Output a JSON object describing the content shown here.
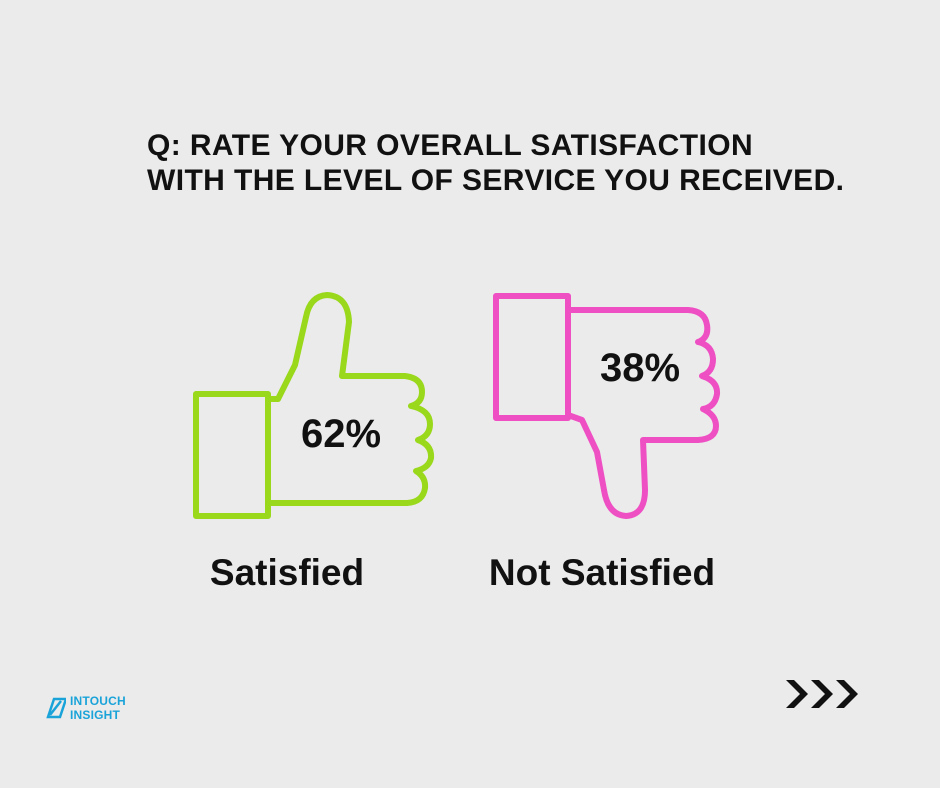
{
  "question": {
    "line1": "Q: RATE YOUR OVERALL SATISFACTION",
    "line2": "WITH THE LEVEL OF SERVICE YOU RECEIVED."
  },
  "chart_data": {
    "type": "pictograph",
    "title": "Q: RATE YOUR OVERALL SATISFACTION WITH THE LEVEL OF SERVICE YOU RECEIVED.",
    "categories": [
      "Satisfied",
      "Not Satisfied"
    ],
    "values": [
      62,
      38
    ],
    "value_labels": [
      "62%",
      "38%"
    ],
    "unit": "%",
    "icons": [
      "thumbs-up-icon",
      "thumbs-down-icon"
    ],
    "colors": [
      "#99d81b",
      "#ee4fc3"
    ]
  },
  "brand": {
    "line1": "INTOUCH",
    "line2": "INSIGHT",
    "color": "#1aa3d9"
  },
  "nav": {
    "icon": "triple-chevron-right-icon"
  }
}
